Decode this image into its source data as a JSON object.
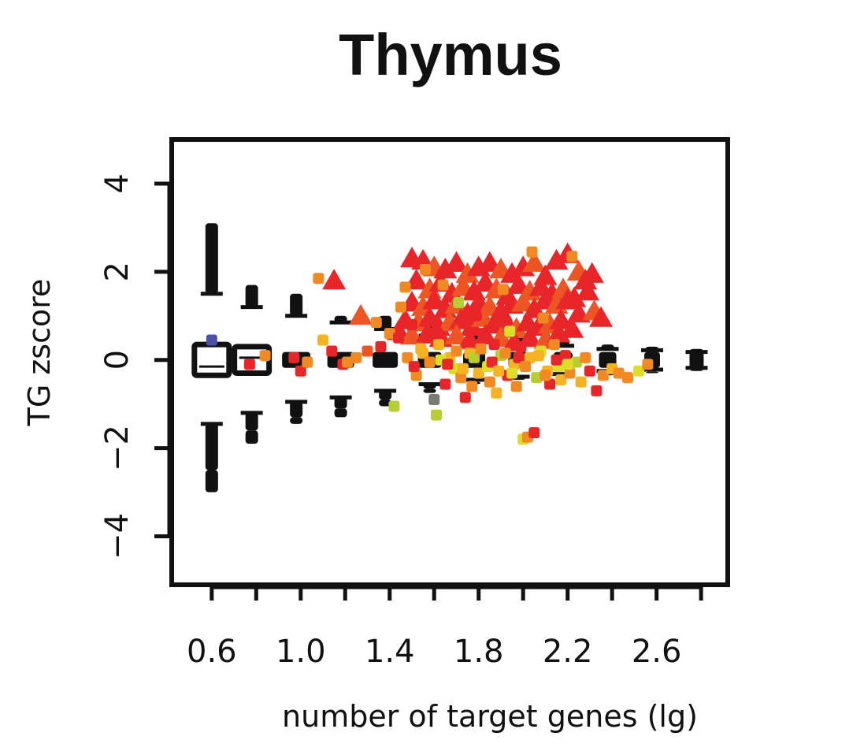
{
  "chart_data": {
    "type": "scatter",
    "title": "Thymus",
    "xlabel": "number of target genes (lg)",
    "ylabel": "TG zscore",
    "xlim": [
      0.42,
      2.92
    ],
    "ylim": [
      -5.1,
      5.0
    ],
    "xticks": [
      0.6,
      0.8,
      1.0,
      1.2,
      1.4,
      1.6,
      1.8,
      2.0,
      2.2,
      2.4,
      2.6,
      2.8
    ],
    "xtick_labels": [
      "0.6",
      "1.0",
      "1.4",
      "1.8",
      "2.2",
      "2.6"
    ],
    "xtick_label_values": [
      0.6,
      1.0,
      1.4,
      1.8,
      2.2,
      2.6
    ],
    "yticks": [
      -4,
      -2,
      0,
      2,
      4
    ],
    "ytick_labels": [
      "−4",
      "−2",
      "0",
      "2",
      "4"
    ],
    "grid": false,
    "legend": null,
    "colors": {
      "background_null": "#111111",
      "red": "#e8262a",
      "orange_red": "#ee5524",
      "orange": "#f28a23",
      "amber": "#f5b223",
      "yellow": "#dddd2a",
      "yellow_green": "#b8cc33",
      "gray": "#7b7b72",
      "blue": "#4a52a8"
    },
    "null_distribution": [
      {
        "x": 0.6,
        "lower_end": -3.0,
        "lower_dense": -2.5,
        "lower_q": -1.45,
        "upper_q": 1.5,
        "upper_dense": 3.1
      },
      {
        "x": 0.78,
        "lower_end": -1.9,
        "lower_dense": -1.6,
        "lower_q": -1.2,
        "upper_q": 1.2,
        "upper_dense": 1.7
      },
      {
        "x": 0.98,
        "lower_end": -1.45,
        "lower_dense": -1.3,
        "lower_q": -0.95,
        "upper_q": 1.0,
        "upper_dense": 1.5
      },
      {
        "x": 1.18,
        "lower_end": -1.3,
        "lower_dense": -1.1,
        "lower_q": -0.85,
        "upper_q": 0.85,
        "upper_dense": 1.0
      },
      {
        "x": 1.38,
        "lower_end": -1.05,
        "lower_dense": -0.9,
        "lower_q": -0.7,
        "upper_q": 0.7,
        "upper_dense": 1.0
      },
      {
        "x": 1.58,
        "lower_end": -0.75,
        "lower_dense": -0.65,
        "lower_q": -0.55,
        "upper_q": 0.55,
        "upper_dense": 0.8
      },
      {
        "x": 1.78,
        "lower_end": -0.55,
        "lower_dense": -0.5,
        "lower_q": -0.45,
        "upper_q": 0.45,
        "upper_dense": 0.6
      },
      {
        "x": 1.98,
        "lower_end": -0.45,
        "lower_dense": -0.42,
        "lower_q": -0.38,
        "upper_q": 0.38,
        "upper_dense": 0.5
      },
      {
        "x": 2.18,
        "lower_end": -0.4,
        "lower_dense": -0.37,
        "lower_q": -0.32,
        "upper_q": 0.32,
        "upper_dense": 0.42
      },
      {
        "x": 2.38,
        "lower_end": -0.35,
        "lower_dense": -0.3,
        "lower_q": -0.25,
        "upper_q": 0.25,
        "upper_dense": 0.35
      },
      {
        "x": 2.58,
        "lower_end": -0.3,
        "lower_dense": -0.27,
        "lower_q": -0.22,
        "upper_q": 0.22,
        "upper_dense": 0.3
      },
      {
        "x": 2.78,
        "lower_end": -0.25,
        "lower_dense": -0.22,
        "lower_q": -0.18,
        "upper_q": 0.18,
        "upper_dense": 0.25
      }
    ],
    "boxes": [
      {
        "x": 0.6,
        "lower": -0.35,
        "median": -0.15,
        "upper": 0.35
      },
      {
        "x": 0.78,
        "lower": -0.3,
        "median": 0.05,
        "upper": 0.3
      }
    ],
    "series": [
      {
        "shape": "triangle",
        "points": [
          [
            1.15,
            1.8
          ],
          [
            1.27,
            1.0
          ],
          [
            1.5,
            2.3
          ],
          [
            1.55,
            2.25
          ],
          [
            1.6,
            2.1
          ],
          [
            1.65,
            2.05
          ],
          [
            1.7,
            2.2
          ],
          [
            1.75,
            1.95
          ],
          [
            1.8,
            2.1
          ],
          [
            1.85,
            2.2
          ],
          [
            1.9,
            2.05
          ],
          [
            1.95,
            1.95
          ],
          [
            2.0,
            2.1
          ],
          [
            2.05,
            2.2
          ],
          [
            2.1,
            1.9
          ],
          [
            2.15,
            2.25
          ],
          [
            2.2,
            2.4
          ],
          [
            2.25,
            2.0
          ],
          [
            2.28,
            1.8
          ],
          [
            2.31,
            1.95
          ],
          [
            1.52,
            1.8
          ],
          [
            1.58,
            1.6
          ],
          [
            1.63,
            1.75
          ],
          [
            1.68,
            1.5
          ],
          [
            1.73,
            1.65
          ],
          [
            1.78,
            1.55
          ],
          [
            1.83,
            1.75
          ],
          [
            1.88,
            1.6
          ],
          [
            1.93,
            1.45
          ],
          [
            1.98,
            1.7
          ],
          [
            2.03,
            1.55
          ],
          [
            2.08,
            1.65
          ],
          [
            2.13,
            1.5
          ],
          [
            2.18,
            1.6
          ],
          [
            2.23,
            1.4
          ],
          [
            2.29,
            1.55
          ],
          [
            1.5,
            1.3
          ],
          [
            1.55,
            1.2
          ],
          [
            1.6,
            1.35
          ],
          [
            1.65,
            1.15
          ],
          [
            1.7,
            1.25
          ],
          [
            1.75,
            1.05
          ],
          [
            1.8,
            1.3
          ],
          [
            1.85,
            1.2
          ],
          [
            1.9,
            1.1
          ],
          [
            1.95,
            1.25
          ],
          [
            2.0,
            1.3
          ],
          [
            2.05,
            1.15
          ],
          [
            2.1,
            1.35
          ],
          [
            2.15,
            1.25
          ],
          [
            2.2,
            1.35
          ],
          [
            2.25,
            1.05
          ],
          [
            2.32,
            1.1
          ],
          [
            2.35,
            0.95
          ],
          [
            1.47,
            0.9
          ],
          [
            1.53,
            0.85
          ],
          [
            1.58,
            0.95
          ],
          [
            1.62,
            0.75
          ],
          [
            1.67,
            0.85
          ],
          [
            1.72,
            0.9
          ],
          [
            1.77,
            0.75
          ],
          [
            1.82,
            0.95
          ],
          [
            1.87,
            0.8
          ],
          [
            1.92,
            0.9
          ],
          [
            1.97,
            0.7
          ],
          [
            2.02,
            0.85
          ],
          [
            2.07,
            0.75
          ],
          [
            2.12,
            0.8
          ],
          [
            2.17,
            0.9
          ],
          [
            2.22,
            0.7
          ],
          [
            1.44,
            0.65
          ],
          [
            1.5,
            0.55
          ],
          [
            1.57,
            0.6
          ],
          [
            1.63,
            0.5
          ],
          [
            1.7,
            0.55
          ],
          [
            1.76,
            0.45
          ],
          [
            1.83,
            0.55
          ],
          [
            1.9,
            0.5
          ],
          [
            1.96,
            0.4
          ],
          [
            2.03,
            0.5
          ],
          [
            2.1,
            0.45
          ],
          [
            2.16,
            0.6
          ]
        ],
        "colors": [
          "red",
          "orange_red",
          "red",
          "red",
          "orange_red",
          "red",
          "red",
          "orange_red",
          "red",
          "red",
          "orange_red",
          "red",
          "red",
          "orange_red",
          "red",
          "red",
          "red",
          "orange_red",
          "red",
          "red",
          "red",
          "orange_red",
          "red",
          "red",
          "orange_red",
          "red",
          "red",
          "orange_red",
          "red",
          "red",
          "orange_red",
          "red",
          "red",
          "orange_red",
          "red",
          "red",
          "red",
          "orange_red",
          "red",
          "red",
          "orange_red",
          "red",
          "red",
          "orange_red",
          "red",
          "red",
          "orange_red",
          "red",
          "red",
          "orange_red",
          "red",
          "red",
          "orange_red",
          "red",
          "red",
          "orange_red",
          "red",
          "red",
          "orange_red",
          "red",
          "red",
          "orange_red",
          "red",
          "red",
          "orange_red",
          "red",
          "red",
          "orange_red",
          "red",
          "red",
          "red",
          "orange_red",
          "red",
          "red",
          "orange_red",
          "red",
          "red",
          "orange_red",
          "red",
          "red",
          "orange_red",
          "red"
        ]
      },
      {
        "shape": "square",
        "points": [
          [
            0.6,
            0.45
          ],
          [
            0.77,
            -0.1
          ],
          [
            0.84,
            0.1
          ],
          [
            0.97,
            0.05
          ],
          [
            1.0,
            -0.25
          ],
          [
            1.03,
            -0.05
          ],
          [
            1.08,
            1.85
          ],
          [
            1.1,
            0.45
          ],
          [
            1.14,
            0.2
          ],
          [
            1.19,
            -0.1
          ],
          [
            1.21,
            -0.05
          ],
          [
            1.25,
            0.05
          ],
          [
            1.3,
            0.2
          ],
          [
            1.34,
            0.85
          ],
          [
            1.36,
            0.3
          ],
          [
            1.4,
            0.6
          ],
          [
            1.42,
            -1.05
          ],
          [
            1.44,
            0.5
          ],
          [
            1.45,
            1.2
          ],
          [
            1.47,
            1.65
          ],
          [
            1.5,
            0.8
          ],
          [
            1.52,
            -0.35
          ],
          [
            1.54,
            0.25
          ],
          [
            1.56,
            2.05
          ],
          [
            1.57,
            0.5
          ],
          [
            1.6,
            -0.9
          ],
          [
            1.61,
            -1.25
          ],
          [
            1.62,
            0.35
          ],
          [
            1.64,
            1.7
          ],
          [
            1.65,
            -0.55
          ],
          [
            1.67,
            0.05
          ],
          [
            1.69,
            -0.2
          ],
          [
            1.71,
            1.3
          ],
          [
            1.72,
            -0.4
          ],
          [
            1.74,
            -0.85
          ],
          [
            1.76,
            0.15
          ],
          [
            1.77,
            -0.6
          ],
          [
            1.79,
            1.0
          ],
          [
            1.8,
            -0.3
          ],
          [
            1.82,
            0.6
          ],
          [
            1.84,
            -0.15
          ],
          [
            1.85,
            -0.5
          ],
          [
            1.87,
            0.35
          ],
          [
            1.88,
            -0.75
          ],
          [
            1.9,
            0.1
          ],
          [
            1.91,
            1.6
          ],
          [
            1.93,
            -0.35
          ],
          [
            1.94,
            0.65
          ],
          [
            1.96,
            -0.1
          ],
          [
            1.97,
            -0.6
          ],
          [
            1.99,
            0.3
          ],
          [
            2.0,
            -1.8
          ],
          [
            2.02,
            -1.75
          ],
          [
            2.03,
            0.05
          ],
          [
            2.04,
            2.45
          ],
          [
            2.05,
            -1.65
          ],
          [
            2.06,
            -0.4
          ],
          [
            2.08,
            0.2
          ],
          [
            2.09,
            0.95
          ],
          [
            2.11,
            -0.25
          ],
          [
            2.12,
            -0.55
          ],
          [
            2.14,
            0.35
          ],
          [
            2.16,
            -0.15
          ],
          [
            2.17,
            -0.45
          ],
          [
            2.19,
            0.1
          ],
          [
            2.21,
            -0.3
          ],
          [
            2.22,
            2.35
          ],
          [
            2.24,
            -0.05
          ],
          [
            2.26,
            -0.5
          ],
          [
            2.28,
            0.05
          ],
          [
            2.3,
            -0.25
          ],
          [
            2.33,
            -0.7
          ],
          [
            2.36,
            -0.35
          ],
          [
            2.4,
            -0.2
          ],
          [
            2.43,
            -0.3
          ],
          [
            2.47,
            -0.4
          ],
          [
            2.52,
            -0.25
          ],
          [
            2.56,
            -0.1
          ],
          [
            1.48,
            0.05
          ],
          [
            1.51,
            -0.15
          ],
          [
            1.55,
            0.15
          ],
          [
            1.58,
            -0.05
          ],
          [
            1.63,
            0.0
          ],
          [
            1.66,
            -0.1
          ],
          [
            1.7,
            0.2
          ],
          [
            1.73,
            -0.2
          ],
          [
            1.78,
            0.05
          ],
          [
            1.81,
            0.25
          ],
          [
            1.86,
            -0.05
          ],
          [
            1.89,
            -0.25
          ],
          [
            1.92,
            0.15
          ],
          [
            1.95,
            -0.3
          ],
          [
            1.98,
            0.05
          ],
          [
            2.01,
            -0.15
          ],
          [
            2.07,
            0.1
          ],
          [
            2.1,
            -0.35
          ],
          [
            2.15,
            0.0
          ],
          [
            2.2,
            -0.1
          ]
        ],
        "colors": [
          "blue",
          "red",
          "orange",
          "red",
          "red",
          "orange",
          "orange",
          "amber",
          "red",
          "red",
          "orange",
          "orange",
          "orange_red",
          "orange",
          "red",
          "orange",
          "yellow_green",
          "red",
          "orange",
          "orange",
          "red",
          "orange",
          "amber",
          "orange",
          "red",
          "gray",
          "yellow_green",
          "amber",
          "orange",
          "red",
          "amber",
          "yellow",
          "yellow_green",
          "orange",
          "red",
          "amber",
          "orange",
          "red",
          "amber",
          "red",
          "yellow",
          "orange",
          "red",
          "amber",
          "yellow_green",
          "orange",
          "red",
          "yellow",
          "amber",
          "orange",
          "red",
          "yellow",
          "orange",
          "amber",
          "orange",
          "red",
          "yellow_green",
          "yellow",
          "orange",
          "amber",
          "red",
          "orange",
          "yellow",
          "amber",
          "red",
          "orange",
          "orange",
          "yellow_green",
          "amber",
          "orange",
          "red",
          "red",
          "orange",
          "amber",
          "orange",
          "orange",
          "yellow",
          "orange",
          "orange",
          "red",
          "amber",
          "orange",
          "yellow",
          "red",
          "orange",
          "amber",
          "yellow_green",
          "orange",
          "red",
          "amber",
          "orange",
          "yellow",
          "red",
          "orange",
          "amber",
          "orange",
          "red",
          "yellow"
        ]
      }
    ]
  }
}
